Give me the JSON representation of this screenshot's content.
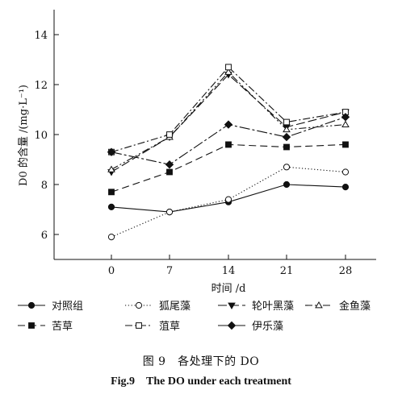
{
  "chart_data": {
    "type": "line",
    "xlabel": "时间 /d",
    "ylabel": "D0 的含量 /(mg·L⁻¹)",
    "x": [
      0,
      7,
      14,
      21,
      28
    ],
    "x_ticks": [
      "0",
      "7",
      "14",
      "21",
      "28"
    ],
    "ylim": [
      5,
      15
    ],
    "y_ticks": [
      "6",
      "8",
      "10",
      "12",
      "14"
    ],
    "grid": false,
    "legend_position": "bottom",
    "series": [
      {
        "name": "对照组",
        "values": [
          7.1,
          6.9,
          7.3,
          8.0,
          7.9
        ],
        "marker": "filled-circle",
        "dash": "solid"
      },
      {
        "name": "狐尾藻",
        "values": [
          5.9,
          6.9,
          7.4,
          8.7,
          8.5
        ],
        "marker": "open-circle",
        "dash": "dotted"
      },
      {
        "name": "轮叶黑藻",
        "values": [
          8.5,
          9.9,
          12.4,
          10.3,
          10.9
        ],
        "marker": "filled-triangle-down",
        "dash": "long-dash"
      },
      {
        "name": "金鱼藻",
        "values": [
          8.6,
          9.9,
          12.5,
          10.2,
          10.4
        ],
        "marker": "open-triangle-up",
        "dash": "dash-dot-dot"
      },
      {
        "name": "苦草",
        "values": [
          7.7,
          8.5,
          9.6,
          9.5,
          9.6
        ],
        "marker": "filled-square",
        "dash": "dashed"
      },
      {
        "name": "菹草",
        "values": [
          9.3,
          10.0,
          12.7,
          10.5,
          10.9
        ],
        "marker": "open-square",
        "dash": "dash-dot"
      },
      {
        "name": "伊乐藻",
        "values": [
          9.3,
          8.8,
          10.4,
          9.9,
          10.7
        ],
        "marker": "filled-diamond",
        "dash": "dash-dot-long"
      }
    ]
  },
  "caption": {
    "cn": "图 9　各处理下的 DO",
    "en": "Fig.9　The DO under each treatment"
  }
}
